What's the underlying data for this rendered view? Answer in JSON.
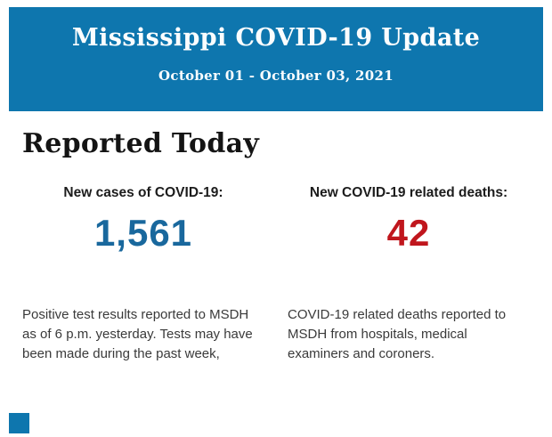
{
  "header": {
    "title": "Mississippi COVID-19 Update",
    "date_range": "October 01 - October 03, 2021",
    "background_color": "#0e76ae",
    "text_color": "#fbfdfe"
  },
  "section": {
    "heading": "Reported Today"
  },
  "stats": [
    {
      "label": "New cases of COVID-19:",
      "value": "1,561",
      "value_color": "#19689d",
      "description": "Positive test results reported to MSDH as of 6 p.m. yesterday. Tests may have been made during the past week,"
    },
    {
      "label": "New COVID-19 related deaths:",
      "value": "42",
      "value_color": "#c0161d",
      "description": "COVID-19 related deaths reported to MSDH from hospitals, medical examiners and coroners."
    }
  ],
  "footer": {
    "square_color": "#0e76ae"
  }
}
